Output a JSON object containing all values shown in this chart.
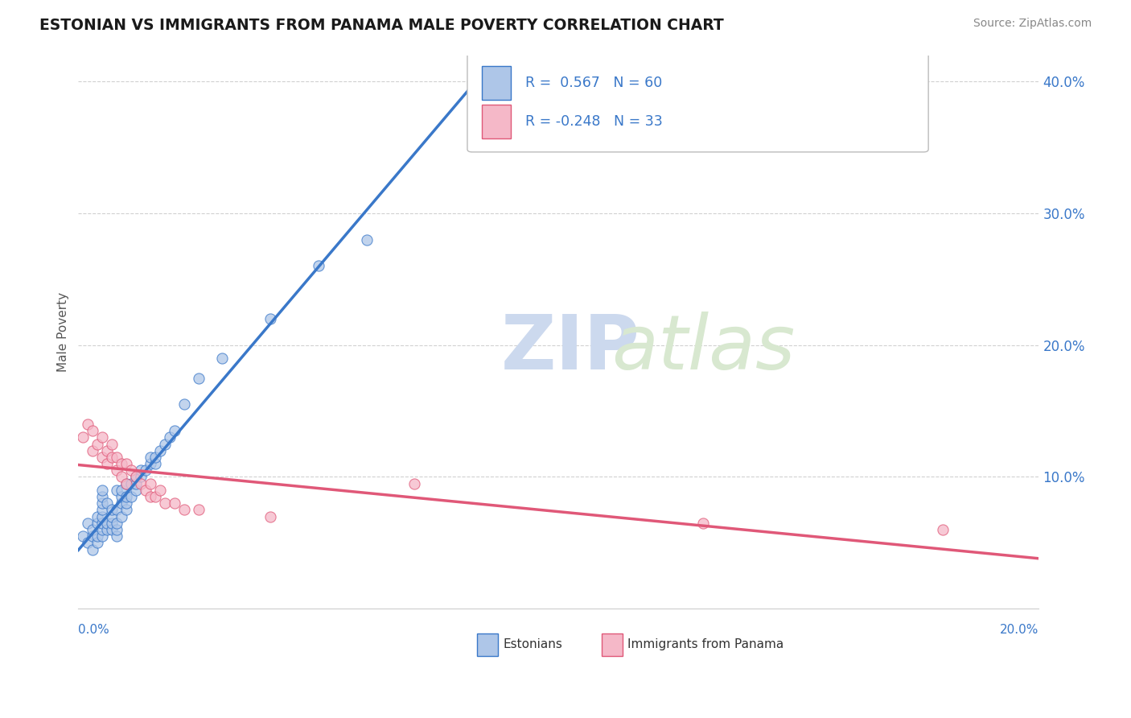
{
  "title": "ESTONIAN VS IMMIGRANTS FROM PANAMA MALE POVERTY CORRELATION CHART",
  "source": "Source: ZipAtlas.com",
  "ylabel": "Male Poverty",
  "legend_label1": "Estonians",
  "legend_label2": "Immigrants from Panama",
  "r1": 0.567,
  "n1": 60,
  "r2": -0.248,
  "n2": 33,
  "color1": "#aec6e8",
  "color2": "#f5b8c8",
  "line_color1": "#3a78c9",
  "line_color2": "#e05878",
  "xmin": 0.0,
  "xmax": 0.2,
  "ymin": 0.0,
  "ymax": 0.42,
  "yticks": [
    0.1,
    0.2,
    0.3,
    0.4
  ],
  "grid_color": "#cccccc",
  "background_color": "#ffffff",
  "estonians_x": [
    0.001,
    0.002,
    0.002,
    0.003,
    0.003,
    0.003,
    0.004,
    0.004,
    0.004,
    0.004,
    0.005,
    0.005,
    0.005,
    0.005,
    0.005,
    0.005,
    0.005,
    0.005,
    0.006,
    0.006,
    0.006,
    0.007,
    0.007,
    0.007,
    0.007,
    0.008,
    0.008,
    0.008,
    0.008,
    0.008,
    0.009,
    0.009,
    0.009,
    0.009,
    0.01,
    0.01,
    0.01,
    0.01,
    0.011,
    0.011,
    0.012,
    0.012,
    0.012,
    0.013,
    0.013,
    0.014,
    0.015,
    0.015,
    0.016,
    0.016,
    0.017,
    0.018,
    0.019,
    0.02,
    0.022,
    0.025,
    0.03,
    0.04,
    0.05,
    0.06
  ],
  "estonians_y": [
    0.055,
    0.065,
    0.05,
    0.055,
    0.06,
    0.045,
    0.05,
    0.055,
    0.065,
    0.07,
    0.055,
    0.06,
    0.065,
    0.07,
    0.075,
    0.08,
    0.085,
    0.09,
    0.06,
    0.065,
    0.08,
    0.06,
    0.065,
    0.07,
    0.075,
    0.055,
    0.06,
    0.065,
    0.075,
    0.09,
    0.07,
    0.08,
    0.085,
    0.09,
    0.075,
    0.08,
    0.085,
    0.095,
    0.085,
    0.095,
    0.09,
    0.095,
    0.1,
    0.1,
    0.105,
    0.105,
    0.11,
    0.115,
    0.11,
    0.115,
    0.12,
    0.125,
    0.13,
    0.135,
    0.155,
    0.175,
    0.19,
    0.22,
    0.26,
    0.28
  ],
  "panama_x": [
    0.001,
    0.002,
    0.003,
    0.003,
    0.004,
    0.005,
    0.005,
    0.006,
    0.006,
    0.007,
    0.007,
    0.008,
    0.008,
    0.009,
    0.009,
    0.01,
    0.01,
    0.011,
    0.012,
    0.013,
    0.014,
    0.015,
    0.015,
    0.016,
    0.017,
    0.018,
    0.02,
    0.022,
    0.025,
    0.04,
    0.07,
    0.13,
    0.18
  ],
  "panama_y": [
    0.13,
    0.14,
    0.12,
    0.135,
    0.125,
    0.115,
    0.13,
    0.11,
    0.12,
    0.115,
    0.125,
    0.105,
    0.115,
    0.1,
    0.11,
    0.095,
    0.11,
    0.105,
    0.1,
    0.095,
    0.09,
    0.085,
    0.095,
    0.085,
    0.09,
    0.08,
    0.08,
    0.075,
    0.075,
    0.07,
    0.095,
    0.065,
    0.06
  ]
}
